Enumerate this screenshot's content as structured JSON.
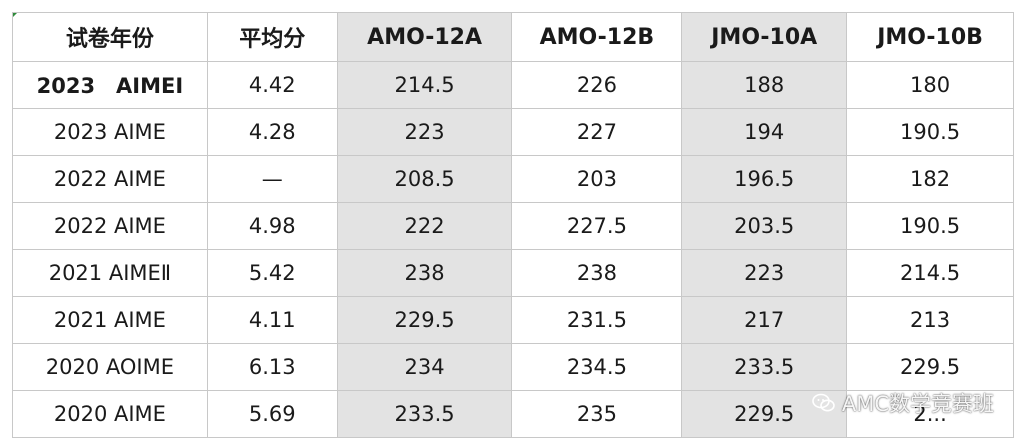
{
  "table": {
    "headers": [
      "试卷年份",
      "平均分",
      "AMO-12A",
      "AMO-12B",
      "JMO-10A",
      "JMO-10B"
    ],
    "rows": [
      {
        "exam": "2023　AIMEI",
        "avg": "4.42",
        "amo12a": "214.5",
        "amo12b": "226",
        "jmo10a": "188",
        "jmo10b": "180"
      },
      {
        "exam": "2023 AIME",
        "avg": "4.28",
        "amo12a": "223",
        "amo12b": "227",
        "jmo10a": "194",
        "jmo10b": "190.5"
      },
      {
        "exam": "2022 AIME",
        "avg": "—",
        "amo12a": "208.5",
        "amo12b": "203",
        "jmo10a": "196.5",
        "jmo10b": "182"
      },
      {
        "exam": "2022 AIME",
        "avg": "4.98",
        "amo12a": "222",
        "amo12b": "227.5",
        "jmo10a": "203.5",
        "jmo10b": "190.5"
      },
      {
        "exam": "2021 AIMEⅡ",
        "avg": "5.42",
        "amo12a": "238",
        "amo12b": "238",
        "jmo10a": "223",
        "jmo10b": "214.5"
      },
      {
        "exam": "2021 AIME",
        "avg": "4.11",
        "amo12a": "229.5",
        "amo12b": "231.5",
        "jmo10a": "217",
        "jmo10b": "213"
      },
      {
        "exam": "2020 AOIME",
        "avg": "6.13",
        "amo12a": "234",
        "amo12b": "234.5",
        "jmo10a": "233.5",
        "jmo10b": "229.5"
      },
      {
        "exam": "2020 AIME",
        "avg": "5.69",
        "amo12a": "233.5",
        "amo12b": "235",
        "jmo10a": "229.5",
        "jmo10b": "2..."
      }
    ]
  },
  "watermark": {
    "text": "AMC数学竞赛班",
    "icon": "wechat-icon"
  },
  "colors": {
    "shade": "#e3e3e3",
    "border": "#c8c8c8",
    "corner_mark": "#2e8b3a"
  }
}
